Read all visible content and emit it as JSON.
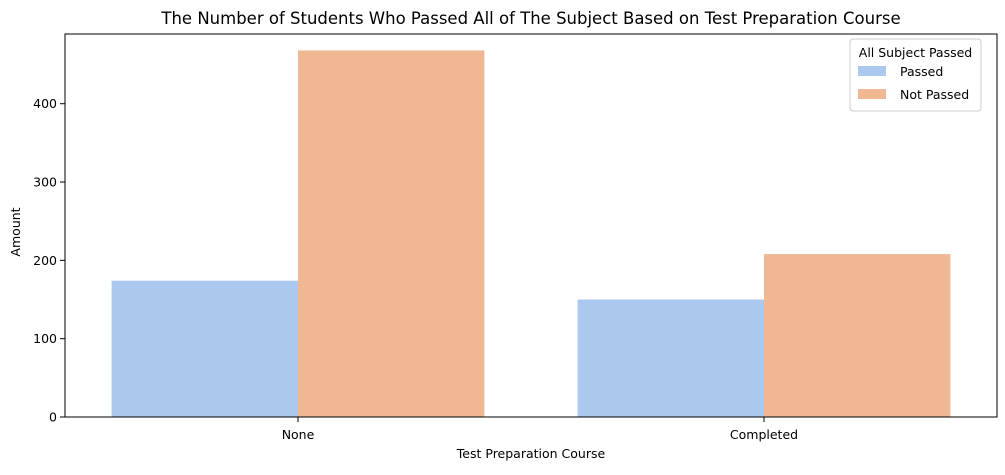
{
  "chart_data": {
    "type": "bar",
    "title": "The Number of Students Who Passed All of The Subject Based on Test Preparation Course",
    "xlabel": "Test Preparation Course",
    "ylabel": "Amount",
    "categories": [
      "None",
      "Completed"
    ],
    "series": [
      {
        "name": "Passed",
        "values": [
          174,
          150
        ],
        "color": "#abc9ee"
      },
      {
        "name": "Not Passed",
        "values": [
          468,
          208
        ],
        "color": "#f0b793"
      }
    ],
    "ylim": [
      0,
      489
    ],
    "yticks": [
      0,
      100,
      200,
      300,
      400
    ],
    "grid": false,
    "legend": {
      "title": "All Subject Passed",
      "placement": "top-right"
    }
  }
}
